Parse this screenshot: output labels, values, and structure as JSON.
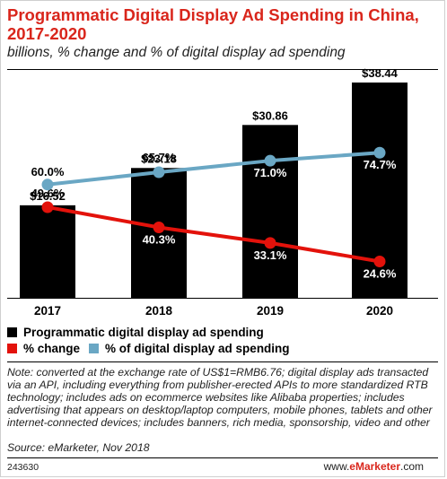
{
  "title": "Programmatic Digital Display Ad Spending in China, 2017-2020",
  "subtitle": "billions, % change and % of digital display ad spending",
  "chart_data": {
    "type": "bar",
    "categories": [
      "2017",
      "2018",
      "2019",
      "2020"
    ],
    "bar_series": {
      "name": "Programmatic digital display ad spending",
      "values": [
        16.52,
        23.18,
        30.86,
        38.44
      ],
      "labels": [
        "$16.52",
        "$23.18",
        "$30.86",
        "$38.44"
      ],
      "color": "#000000"
    },
    "line_series": [
      {
        "name": "% change",
        "values": [
          49.6,
          40.3,
          33.1,
          24.6
        ],
        "labels": [
          "49.6%",
          "40.3%",
          "33.1%",
          "24.6%"
        ],
        "color": "#e3120b"
      },
      {
        "name": "% of digital display ad spending",
        "values": [
          60.0,
          65.7,
          71.0,
          74.7
        ],
        "labels": [
          "60.0%",
          "65.7%",
          "71.0%",
          "74.7%"
        ],
        "color": "#6aa7c4"
      }
    ],
    "legend_position": "bottom-left"
  },
  "legend": {
    "bars": "Programmatic digital display ad spending",
    "change": "% change",
    "share": "% of digital display ad spending"
  },
  "note": "Note: converted at the exchange rate of US$1=RMB6.76; digital display ads transacted via an API, including everything from publisher-erected APIs to more standardized RTB technology; includes ads on ecommerce websites like Alibaba properties; includes advertising that appears on desktop/laptop computers, mobile phones, tablets and other internet-connected devices; includes banners, rich media, sponsorship, video and other",
  "source": "Source: eMarketer, Nov 2018",
  "footer": {
    "id": "243630",
    "brand_prefix": "www.",
    "brand_name": "eMarketer",
    "brand_suffix": ".com"
  }
}
